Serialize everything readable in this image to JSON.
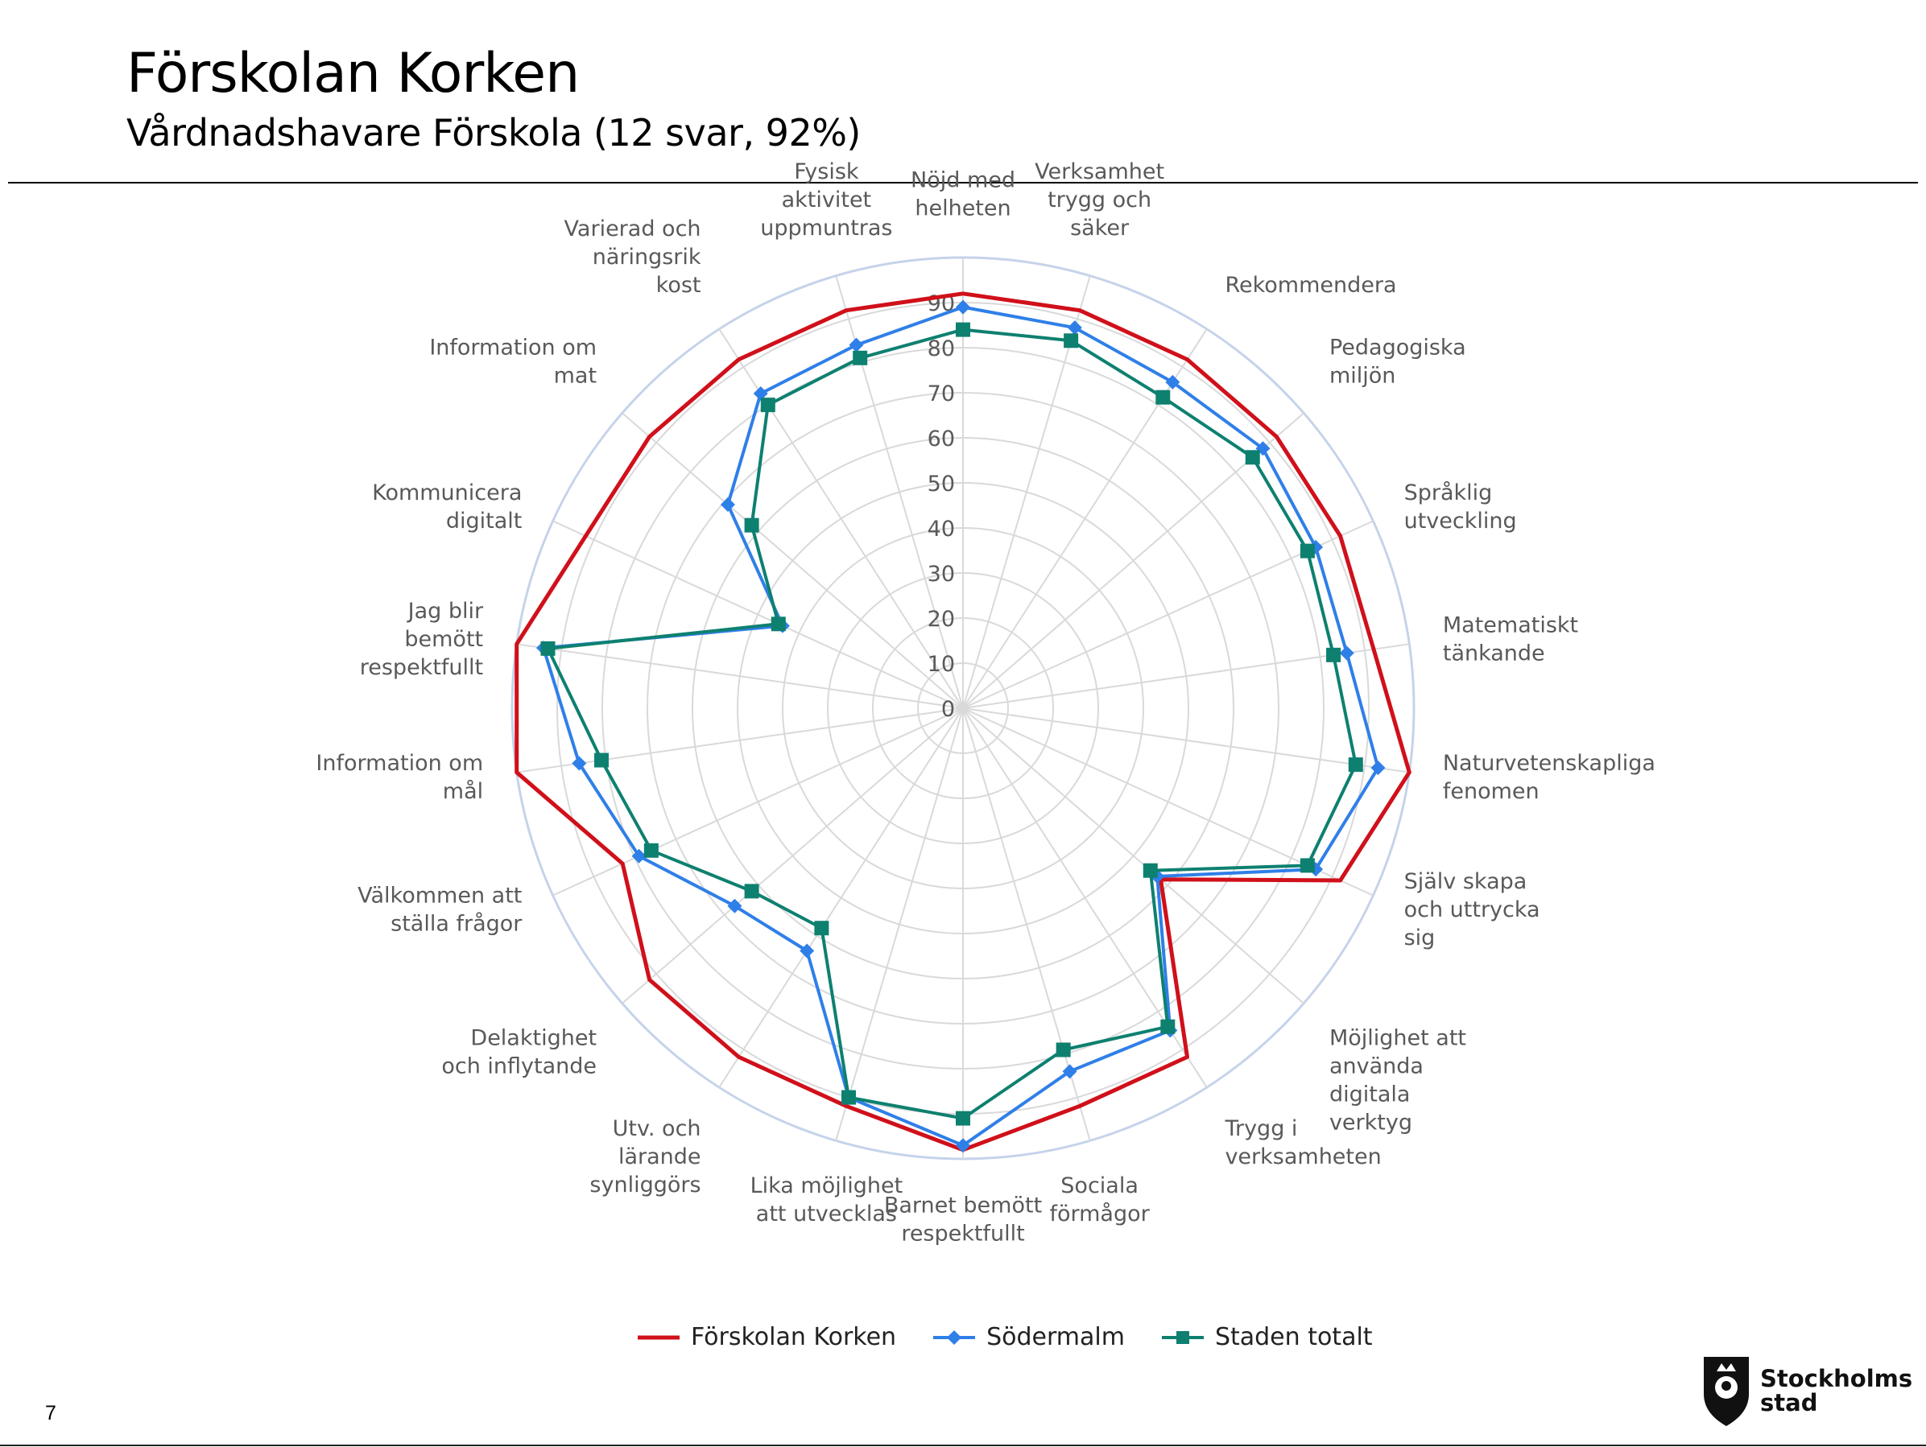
{
  "header": {
    "title": "Förskolan Korken",
    "subtitle": "Vårdnadshavare Förskola  (12 svar, 92%)"
  },
  "page_number": "7",
  "logo": {
    "text_line1": "Stockholms",
    "text_line2": "stad",
    "icon": "stockholm-crest-icon"
  },
  "colors": {
    "korken": "#d0101a",
    "sodermalm": "#2f7fe8",
    "staden": "#0e8070",
    "grid": "#d9d9d9",
    "outer_ring": "#c5d3ea"
  },
  "chart_data": {
    "type": "radar",
    "categories": [
      "Nöjd med helheten",
      "Verksamhet trygg och säker",
      "Rekommendera",
      "Pedagogiska miljön",
      "Språklig utveckling",
      "Matematiskt tänkande",
      "Naturvetenskapliga fenomen",
      "Själv skapa och uttrycka sig",
      "Möjlighet att använda digitala verktyg",
      "Trygg i verksamheten",
      "Sociala förmågor",
      "Barnet bemött respektfullt",
      "Lika möjlighet att utvecklas",
      "Utv. och lärande synliggörs",
      "Delaktighet och inflytande",
      "Välkommen att ställa frågor",
      "Information om mål",
      "Jag blir bemött respektfullt",
      "Kommunicera digitalt",
      "Information om mat",
      "Varierad och näringsrik kost",
      "Fysisk aktivitet uppmuntras"
    ],
    "radial_ticks": [
      0,
      10,
      20,
      30,
      40,
      50,
      60,
      70,
      80,
      90
    ],
    "rmax": 100,
    "series": [
      {
        "name": "Förskolan Korken",
        "marker": "none",
        "values": [
          92,
          92,
          92,
          92,
          92,
          92,
          100,
          92,
          58,
          92,
          92,
          98,
          92,
          92,
          92,
          83,
          100,
          100,
          92,
          92,
          92,
          92
        ]
      },
      {
        "name": "Södermalm",
        "marker": "diamond",
        "values": [
          89,
          88,
          86,
          88,
          86,
          86,
          93,
          86,
          57,
          85,
          84,
          97,
          90,
          64,
          67,
          79,
          86,
          94,
          44,
          69,
          83,
          84
        ]
      },
      {
        "name": "Staden totalt",
        "marker": "square",
        "values": [
          84,
          85,
          82,
          85,
          84,
          83,
          88,
          84,
          55,
          84,
          79,
          91,
          90,
          58,
          62,
          76,
          81,
          93,
          45,
          62,
          80,
          81
        ]
      }
    ],
    "legend_position": "bottom"
  }
}
